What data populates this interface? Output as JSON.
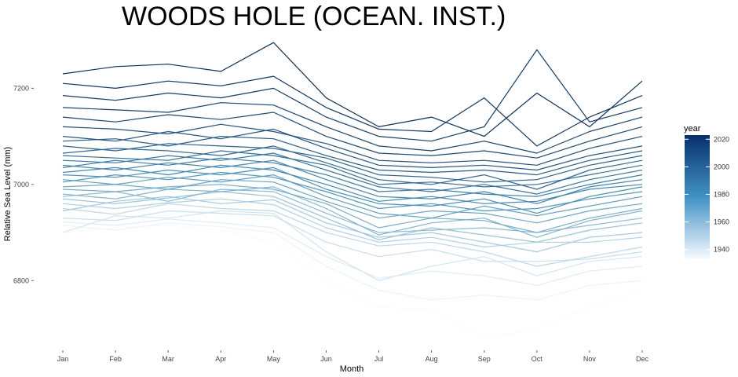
{
  "chart_data": {
    "type": "line",
    "title": "WOODS HOLE (OCEAN. INST.)",
    "xlabel": "Month",
    "ylabel": "Relative Sea Level (mm)",
    "categories": [
      "Jan",
      "Feb",
      "Mar",
      "Apr",
      "May",
      "Jun",
      "Jul",
      "Aug",
      "Sep",
      "Oct",
      "Nov",
      "Dec"
    ],
    "y_ticks": [
      6800,
      7000,
      7200
    ],
    "y_tick_labels": [
      "6800",
      "7000",
      "7200"
    ],
    "ylim": [
      6665,
      7310
    ],
    "grid": false,
    "color_scale": {
      "title": "year",
      "min_year": 1933,
      "max_year": 2023,
      "ticks": [
        1940,
        1960,
        1980,
        2000,
        2020
      ],
      "tick_labels": [
        "1940",
        "1960",
        "1980",
        "2000",
        "2020"
      ],
      "low_color": "#f7fbff",
      "high_color": "#08306b"
    },
    "legend_position": "right",
    "series": [
      {
        "year": 1933,
        "values": [
          6900,
          6910,
          6915,
          6905,
          6880,
          6800,
          6745,
          6740,
          6680,
          6700,
          6745,
          6780
        ]
      },
      {
        "year": 1936,
        "values": [
          6915,
          6905,
          6920,
          6912,
          6900,
          6830,
          6780,
          6760,
          6770,
          6760,
          6790,
          6800
        ]
      },
      {
        "year": 1939,
        "values": [
          6922,
          6915,
          6928,
          6920,
          6910,
          6850,
          6805,
          6820,
          6810,
          6790,
          6820,
          6830
        ]
      },
      {
        "year": 1942,
        "values": [
          6900,
          6935,
          6930,
          6945,
          6940,
          6860,
          6800,
          6830,
          6850,
          6810,
          6840,
          6850
        ]
      },
      {
        "year": 1945,
        "values": [
          6930,
          6925,
          6945,
          6940,
          6935,
          6880,
          6850,
          6865,
          6840,
          6840,
          6845,
          6860
        ]
      },
      {
        "year": 1948,
        "values": [
          6950,
          6938,
          6960,
          6950,
          6945,
          6900,
          6872,
          6880,
          6860,
          6830,
          6850,
          6870
        ]
      },
      {
        "year": 1951,
        "values": [
          6960,
          6950,
          6962,
          6970,
          6958,
          6910,
          6880,
          6890,
          6870,
          6880,
          6880,
          6890
        ]
      },
      {
        "year": 1954,
        "values": [
          6945,
          6965,
          6975,
          6960,
          6968,
          6920,
          6890,
          6900,
          6880,
          6860,
          6890,
          6900
        ]
      },
      {
        "year": 1957,
        "values": [
          6970,
          6960,
          6972,
          6985,
          6975,
          6930,
          6885,
          6910,
          6895,
          6880,
          6905,
          6920
        ]
      },
      {
        "year": 1960,
        "values": [
          6975,
          6985,
          6965,
          6990,
          6985,
          6940,
          6900,
          6905,
          6910,
          6900,
          6915,
          6930
        ]
      },
      {
        "year": 1963,
        "values": [
          6980,
          6970,
          6990,
          6985,
          6995,
          6950,
          6895,
          6920,
          6930,
          6890,
          6925,
          6945
        ]
      },
      {
        "year": 1966,
        "values": [
          6990,
          6985,
          6995,
          7000,
          6990,
          6960,
          6910,
          6930,
          6925,
          6900,
          6930,
          6950
        ]
      },
      {
        "year": 1969,
        "values": [
          6995,
          7000,
          6990,
          7010,
          7005,
          6965,
          6930,
          6945,
          6940,
          6920,
          6945,
          6960
        ]
      },
      {
        "year": 1972,
        "values": [
          7010,
          7000,
          7015,
          7005,
          7020,
          6975,
          6940,
          6930,
          6955,
          6935,
          6955,
          6975
        ]
      },
      {
        "year": 1975,
        "values": [
          7005,
          7020,
          7010,
          7025,
          7015,
          6985,
          6950,
          6960,
          6945,
          6950,
          6970,
          6985
        ]
      },
      {
        "year": 1978,
        "values": [
          7020,
          7015,
          7030,
          7020,
          7035,
          6990,
          6960,
          6955,
          6970,
          6940,
          6975,
          6995
        ]
      },
      {
        "year": 1981,
        "values": [
          7025,
          7035,
          7020,
          7040,
          7030,
          7000,
          6965,
          6975,
          6960,
          6965,
          6990,
          7000
        ]
      },
      {
        "year": 1984,
        "values": [
          7040,
          7030,
          7045,
          7035,
          7050,
          7010,
          6975,
          6970,
          6985,
          6960,
          6995,
          7010
        ]
      },
      {
        "year": 1987,
        "values": [
          7035,
          7050,
          7040,
          7055,
          7045,
          7020,
          6985,
          6990,
          6980,
          6975,
          7000,
          7020
        ]
      },
      {
        "year": 1990,
        "values": [
          7050,
          7045,
          7060,
          7050,
          7065,
          7030,
          6995,
          6985,
          7000,
          6980,
          7010,
          7030
        ]
      },
      {
        "year": 1993,
        "values": [
          7060,
          7055,
          7050,
          7070,
          7060,
          7040,
          7000,
          7005,
          6995,
          7000,
          7020,
          7040
        ]
      },
      {
        "year": 1996,
        "values": [
          7065,
          7075,
          7070,
          7060,
          7080,
          7045,
          7010,
          7000,
          7020,
          6990,
          7030,
          7050
        ]
      },
      {
        "year": 1999,
        "values": [
          7080,
          7070,
          7085,
          7080,
          7075,
          7055,
          7020,
          7015,
          7005,
          7010,
          7040,
          7060
        ]
      },
      {
        "year": 2002,
        "values": [
          7090,
          7095,
          7080,
          7100,
          7095,
          7060,
          7030,
          7025,
          7030,
          7020,
          7050,
          7070
        ]
      },
      {
        "year": 2005,
        "values": [
          7100,
          7090,
          7110,
          7095,
          7115,
          7075,
          7040,
          7035,
          7040,
          7030,
          7060,
          7080
        ]
      },
      {
        "year": 2008,
        "values": [
          7120,
          7115,
          7105,
          7125,
          7110,
          7085,
          7050,
          7045,
          7050,
          7040,
          7075,
          7100
        ]
      },
      {
        "year": 2011,
        "values": [
          7140,
          7130,
          7145,
          7135,
          7150,
          7100,
          7065,
          7060,
          7070,
          7055,
          7090,
          7120
        ]
      },
      {
        "year": 2014,
        "values": [
          7160,
          7155,
          7150,
          7170,
          7165,
          7120,
          7080,
          7070,
          7090,
          7065,
          7110,
          7140
        ]
      },
      {
        "year": 2017,
        "values": [
          7185,
          7175,
          7190,
          7180,
          7200,
          7140,
          7100,
          7090,
          7120,
          7280,
          7130,
          7160
        ]
      },
      {
        "year": 2020,
        "values": [
          7210,
          7200,
          7215,
          7205,
          7225,
          7160,
          7115,
          7110,
          7180,
          7080,
          7140,
          7185
        ]
      },
      {
        "year": 2023,
        "values": [
          7230,
          7245,
          7250,
          7235,
          7295,
          7180,
          7120,
          7140,
          7100,
          7190,
          7120,
          7215
        ]
      }
    ]
  }
}
